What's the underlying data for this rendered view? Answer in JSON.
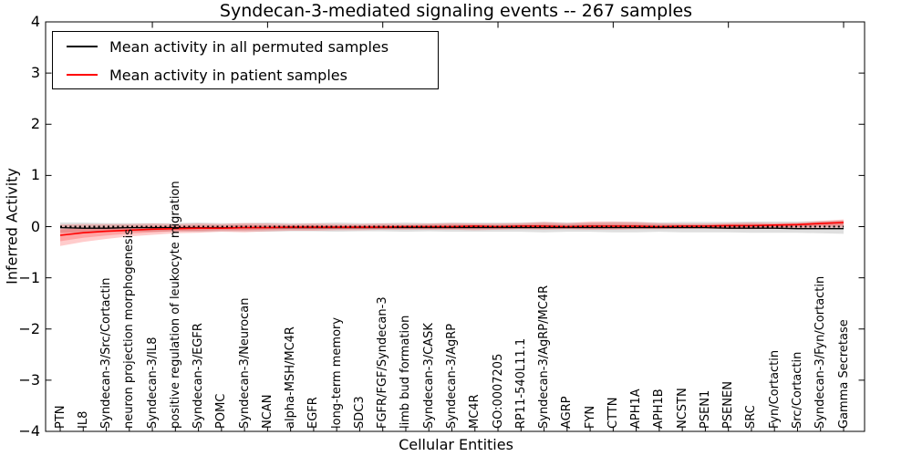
{
  "title": "Syndecan-3-mediated signaling events -- 267 samples",
  "axes": {
    "ylabel": "Inferred Activity",
    "xlabel": "Cellular Entities",
    "yticks": [
      "4",
      "3",
      "2",
      "1",
      "0",
      "−1",
      "−2",
      "−3",
      "−4"
    ]
  },
  "legend": {
    "entries": [
      {
        "label": "Mean activity in all permuted samples",
        "color": "#000000"
      },
      {
        "label": "Mean activity in patient samples",
        "color": "#ff0000"
      }
    ]
  },
  "colors": {
    "permuted_line": "#000000",
    "patient_line": "#ff0000",
    "permuted_band": "rgba(128,128,128,0.25)",
    "patient_band": "rgba(255,0,0,0.20)",
    "zero_line": "#000000",
    "spine": "#000000",
    "background": "#ffffff"
  },
  "chart_data": {
    "type": "line",
    "title": "Syndecan-3-mediated signaling events -- 267 samples",
    "xlabel": "Cellular Entities",
    "ylabel": "Inferred Activity",
    "ylim": [
      -4,
      4
    ],
    "grid": false,
    "legend_position": "upper left",
    "zero_reference_line": 0,
    "categories": [
      "PTN",
      "IL8",
      "Syndecan-3/Src/Cortactin",
      "neuron projection morphogenesis",
      "Syndecan-3/IL8",
      "positive regulation of leukocyte migration",
      "Syndecan-3/EGFR",
      "POMC",
      "Syndecan-3/Neurocan",
      "NCAN",
      "alpha-MSH/MC4R",
      "EGFR",
      "long-term memory",
      "SDC3",
      "FGFR/FGF/Syndecan-3",
      "limb bud formation",
      "Syndecan-3/CASK",
      "Syndecan-3/AgRP",
      "MC4R",
      "GO:0007205",
      "RP11-540L11.1",
      "Syndecan-3/AgRP/MC4R",
      "AGRP",
      "FYN",
      "CTTN",
      "APH1A",
      "APH1B",
      "NCSTN",
      "PSEN1",
      "PSENEN",
      "SRC",
      "Fyn/Cortactin",
      "Src/Cortactin",
      "Syndecan-3/Fyn/Cortactin",
      "Gamma Secretase"
    ],
    "series": [
      {
        "name": "Mean activity in all permuted samples",
        "color": "#000000",
        "values": [
          -0.02,
          -0.03,
          -0.03,
          -0.02,
          -0.02,
          -0.02,
          -0.02,
          -0.02,
          -0.02,
          -0.02,
          -0.02,
          -0.02,
          -0.02,
          -0.02,
          -0.02,
          -0.02,
          -0.02,
          -0.02,
          -0.02,
          -0.02,
          -0.02,
          -0.02,
          -0.02,
          -0.02,
          -0.02,
          -0.02,
          -0.02,
          -0.02,
          -0.02,
          -0.03,
          -0.03,
          -0.03,
          -0.04,
          -0.04,
          -0.04
        ]
      },
      {
        "name": "Mean activity in patient samples",
        "color": "#ff0000",
        "values": [
          -0.17,
          -0.12,
          -0.09,
          -0.07,
          -0.05,
          -0.04,
          -0.03,
          -0.03,
          -0.02,
          -0.02,
          -0.01,
          -0.01,
          -0.01,
          -0.01,
          -0.01,
          0,
          0,
          0,
          0.01,
          0,
          0.01,
          0.01,
          0,
          0.01,
          0.01,
          0.01,
          0,
          0.01,
          0.01,
          0.02,
          0.02,
          0.03,
          0.04,
          0.06,
          0.08
        ]
      }
    ],
    "bands": [
      {
        "name": "permuted samples spread",
        "hi": [
          0.08,
          0.08,
          0.07,
          0.07,
          0.07,
          0.07,
          0.08,
          0.07,
          0.07,
          0.08,
          0.07,
          0.07,
          0.08,
          0.07,
          0.07,
          0.08,
          0.07,
          0.08,
          0.08,
          0.08,
          0.08,
          0.09,
          0.08,
          0.08,
          0.09,
          0.09,
          0.08,
          0.09,
          0.09,
          0.09,
          0.1,
          0.1,
          0.1,
          0.11,
          0.12
        ],
        "lo": [
          -0.12,
          -0.11,
          -0.1,
          -0.1,
          -0.1,
          -0.09,
          -0.1,
          -0.09,
          -0.09,
          -0.1,
          -0.09,
          -0.09,
          -0.1,
          -0.09,
          -0.09,
          -0.1,
          -0.09,
          -0.1,
          -0.1,
          -0.1,
          -0.1,
          -0.11,
          -0.1,
          -0.1,
          -0.11,
          -0.11,
          -0.1,
          -0.11,
          -0.11,
          -0.11,
          -0.12,
          -0.12,
          -0.12,
          -0.13,
          -0.14
        ]
      },
      {
        "name": "patient samples spread",
        "hi": [
          0.04,
          0.05,
          0.05,
          0.05,
          0.06,
          0.05,
          0.06,
          0.05,
          0.07,
          0.06,
          0.05,
          0.06,
          0.05,
          0.05,
          0.06,
          0.05,
          0.06,
          0.07,
          0.06,
          0.06,
          0.07,
          0.09,
          0.07,
          0.1,
          0.1,
          0.09,
          0.07,
          0.06,
          0.06,
          0.07,
          0.08,
          0.07,
          0.08,
          0.11,
          0.14
        ],
        "lo": [
          -0.38,
          -0.3,
          -0.24,
          -0.19,
          -0.16,
          -0.13,
          -0.12,
          -0.1,
          -0.11,
          -0.09,
          -0.08,
          -0.08,
          -0.07,
          -0.07,
          -0.06,
          -0.06,
          -0.06,
          -0.06,
          -0.07,
          -0.06,
          -0.05,
          -0.06,
          -0.05,
          -0.06,
          -0.06,
          -0.05,
          -0.05,
          -0.04,
          -0.04,
          -0.05,
          -0.05,
          -0.04,
          -0.03,
          -0.02,
          -0.02
        ]
      }
    ]
  }
}
